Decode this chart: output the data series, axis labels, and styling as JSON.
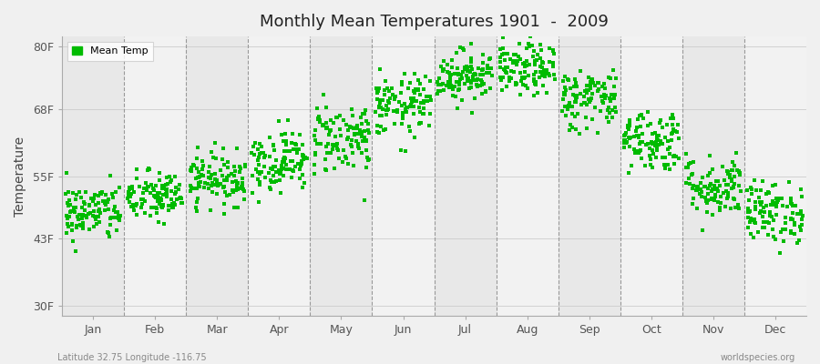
{
  "title": "Monthly Mean Temperatures 1901  -  2009",
  "ylabel": "Temperature",
  "xlabel_bottom_left": "Latitude 32.75 Longitude -116.75",
  "xlabel_bottom_right": "worldspecies.org",
  "ytick_labels": [
    "30F",
    "43F",
    "55F",
    "68F",
    "80F"
  ],
  "ytick_values": [
    30,
    43,
    55,
    68,
    80
  ],
  "ylim": [
    28,
    82
  ],
  "months": [
    "Jan",
    "Feb",
    "Mar",
    "Apr",
    "May",
    "Jun",
    "Jul",
    "Aug",
    "Sep",
    "Oct",
    "Nov",
    "Dec"
  ],
  "dot_color": "#00bb00",
  "band_color_odd": "#e8e8e8",
  "band_color_even": "#f2f2f2",
  "legend_label": "Mean Temp",
  "mean_temps_by_month": [
    48.0,
    51.0,
    54.5,
    58.0,
    62.5,
    68.5,
    74.5,
    75.5,
    70.0,
    62.0,
    53.0,
    48.0
  ],
  "std_by_month": [
    2.8,
    2.5,
    2.5,
    3.0,
    3.5,
    3.0,
    2.5,
    2.5,
    3.0,
    3.0,
    3.0,
    3.0
  ],
  "num_years": 109,
  "seed": 42,
  "dot_size": 5
}
